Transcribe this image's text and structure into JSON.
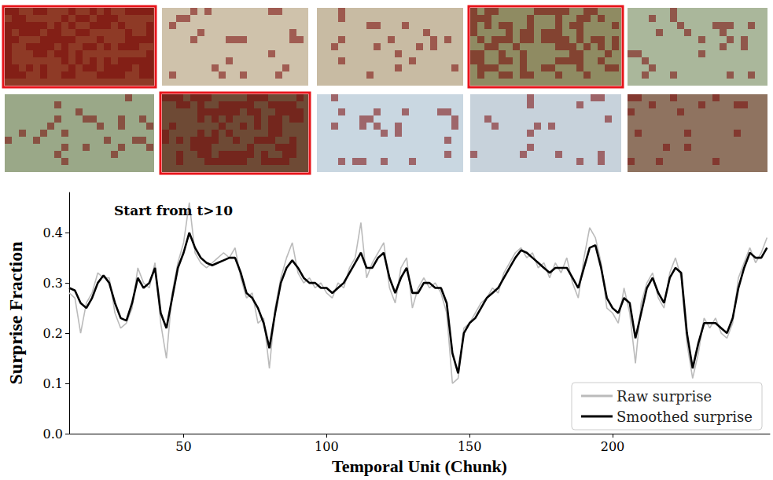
{
  "chart_data": {
    "type": "line",
    "annotation": "Start from t>10",
    "x_label": "Temporal Unit (Chunk)",
    "y_label": "Surprise Fraction",
    "x": [
      10,
      12,
      14,
      16,
      18,
      20,
      22,
      24,
      26,
      28,
      30,
      32,
      34,
      36,
      38,
      40,
      42,
      44,
      46,
      48,
      50,
      52,
      54,
      56,
      58,
      60,
      62,
      64,
      66,
      68,
      70,
      72,
      74,
      76,
      78,
      80,
      82,
      84,
      86,
      88,
      90,
      92,
      94,
      96,
      98,
      100,
      102,
      104,
      106,
      108,
      110,
      112,
      114,
      116,
      118,
      120,
      122,
      124,
      126,
      128,
      130,
      132,
      134,
      136,
      138,
      140,
      142,
      144,
      146,
      148,
      150,
      152,
      154,
      156,
      158,
      160,
      162,
      164,
      166,
      168,
      170,
      172,
      174,
      176,
      178,
      180,
      182,
      184,
      186,
      188,
      190,
      192,
      194,
      196,
      198,
      200,
      202,
      204,
      206,
      208,
      210,
      212,
      214,
      216,
      218,
      220,
      222,
      224,
      226,
      228,
      230,
      232,
      234,
      236,
      238,
      240,
      242,
      244,
      246,
      248,
      250,
      252,
      254
    ],
    "series": [
      {
        "name": "Raw surprise",
        "color": "#bbbbbb",
        "values": [
          0.28,
          0.27,
          0.2,
          0.26,
          0.28,
          0.32,
          0.31,
          0.31,
          0.24,
          0.21,
          0.22,
          0.25,
          0.33,
          0.3,
          0.29,
          0.34,
          0.22,
          0.15,
          0.28,
          0.34,
          0.38,
          0.46,
          0.36,
          0.34,
          0.33,
          0.34,
          0.35,
          0.36,
          0.35,
          0.37,
          0.31,
          0.27,
          0.28,
          0.22,
          0.23,
          0.13,
          0.25,
          0.31,
          0.35,
          0.38,
          0.32,
          0.3,
          0.31,
          0.29,
          0.3,
          0.28,
          0.27,
          0.3,
          0.29,
          0.33,
          0.35,
          0.42,
          0.31,
          0.34,
          0.36,
          0.38,
          0.29,
          0.26,
          0.33,
          0.35,
          0.25,
          0.29,
          0.31,
          0.29,
          0.3,
          0.28,
          0.24,
          0.1,
          0.11,
          0.21,
          0.22,
          0.24,
          0.26,
          0.27,
          0.29,
          0.28,
          0.32,
          0.34,
          0.36,
          0.37,
          0.35,
          0.36,
          0.33,
          0.34,
          0.31,
          0.34,
          0.32,
          0.35,
          0.3,
          0.27,
          0.35,
          0.41,
          0.39,
          0.34,
          0.25,
          0.24,
          0.22,
          0.29,
          0.24,
          0.14,
          0.26,
          0.3,
          0.32,
          0.27,
          0.25,
          0.32,
          0.35,
          0.31,
          0.18,
          0.11,
          0.16,
          0.23,
          0.21,
          0.23,
          0.2,
          0.19,
          0.22,
          0.31,
          0.34,
          0.37,
          0.34,
          0.36,
          0.39
        ]
      },
      {
        "name": "Smoothed surprise",
        "color": "#000000",
        "values": [
          0.29,
          0.285,
          0.26,
          0.25,
          0.27,
          0.3,
          0.315,
          0.3,
          0.26,
          0.23,
          0.225,
          0.26,
          0.31,
          0.29,
          0.3,
          0.33,
          0.24,
          0.21,
          0.27,
          0.33,
          0.36,
          0.4,
          0.37,
          0.35,
          0.34,
          0.335,
          0.34,
          0.345,
          0.35,
          0.35,
          0.32,
          0.28,
          0.27,
          0.25,
          0.22,
          0.17,
          0.24,
          0.3,
          0.33,
          0.345,
          0.33,
          0.31,
          0.3,
          0.3,
          0.29,
          0.29,
          0.28,
          0.29,
          0.3,
          0.32,
          0.34,
          0.36,
          0.33,
          0.33,
          0.35,
          0.36,
          0.31,
          0.28,
          0.31,
          0.33,
          0.28,
          0.28,
          0.3,
          0.3,
          0.29,
          0.29,
          0.26,
          0.16,
          0.12,
          0.2,
          0.22,
          0.23,
          0.25,
          0.27,
          0.28,
          0.29,
          0.31,
          0.33,
          0.35,
          0.365,
          0.36,
          0.35,
          0.34,
          0.33,
          0.32,
          0.33,
          0.33,
          0.33,
          0.31,
          0.29,
          0.33,
          0.37,
          0.375,
          0.33,
          0.27,
          0.25,
          0.24,
          0.27,
          0.26,
          0.19,
          0.24,
          0.29,
          0.31,
          0.28,
          0.26,
          0.31,
          0.33,
          0.32,
          0.2,
          0.13,
          0.18,
          0.22,
          0.22,
          0.22,
          0.21,
          0.2,
          0.23,
          0.29,
          0.33,
          0.36,
          0.35,
          0.35,
          0.37
        ]
      }
    ],
    "xlim": [
      10,
      255
    ],
    "xticks": [
      50,
      100,
      150,
      200
    ],
    "ylim": [
      0,
      0.48
    ],
    "yticks": [
      {
        "value": 0,
        "label": "0.0"
      },
      {
        "value": 0.1,
        "label": "0.1"
      },
      {
        "value": 0.2,
        "label": "0.2"
      },
      {
        "value": 0.3,
        "label": "0.3"
      },
      {
        "value": 0.4,
        "label": "0.4"
      }
    ],
    "grid": false,
    "legend": "lower right"
  }
}
